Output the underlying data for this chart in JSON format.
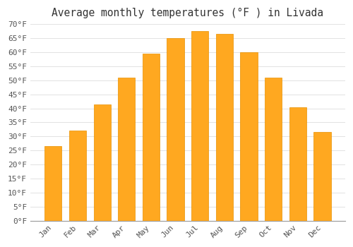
{
  "title": "Average monthly temperatures (°F ) in Livada",
  "months": [
    "Jan",
    "Feb",
    "Mar",
    "Apr",
    "May",
    "Jun",
    "Jul",
    "Aug",
    "Sep",
    "Oct",
    "Nov",
    "Dec"
  ],
  "values": [
    26.5,
    32.0,
    41.5,
    51.0,
    59.5,
    65.0,
    67.5,
    66.5,
    60.0,
    51.0,
    40.5,
    31.5
  ],
  "bar_color": "#FFA820",
  "bar_edge_color": "#E89000",
  "background_color": "#FFFFFF",
  "grid_color": "#DDDDDD",
  "ylim": [
    0,
    70
  ],
  "yticks": [
    0,
    5,
    10,
    15,
    20,
    25,
    30,
    35,
    40,
    45,
    50,
    55,
    60,
    65,
    70
  ],
  "ytick_labels": [
    "0°F",
    "5°F",
    "10°F",
    "15°F",
    "20°F",
    "25°F",
    "30°F",
    "35°F",
    "40°F",
    "45°F",
    "50°F",
    "55°F",
    "60°F",
    "65°F",
    "70°F"
  ],
  "title_fontsize": 10.5,
  "tick_fontsize": 8,
  "figsize": [
    5.0,
    3.5
  ],
  "dpi": 100,
  "bar_width": 0.7
}
